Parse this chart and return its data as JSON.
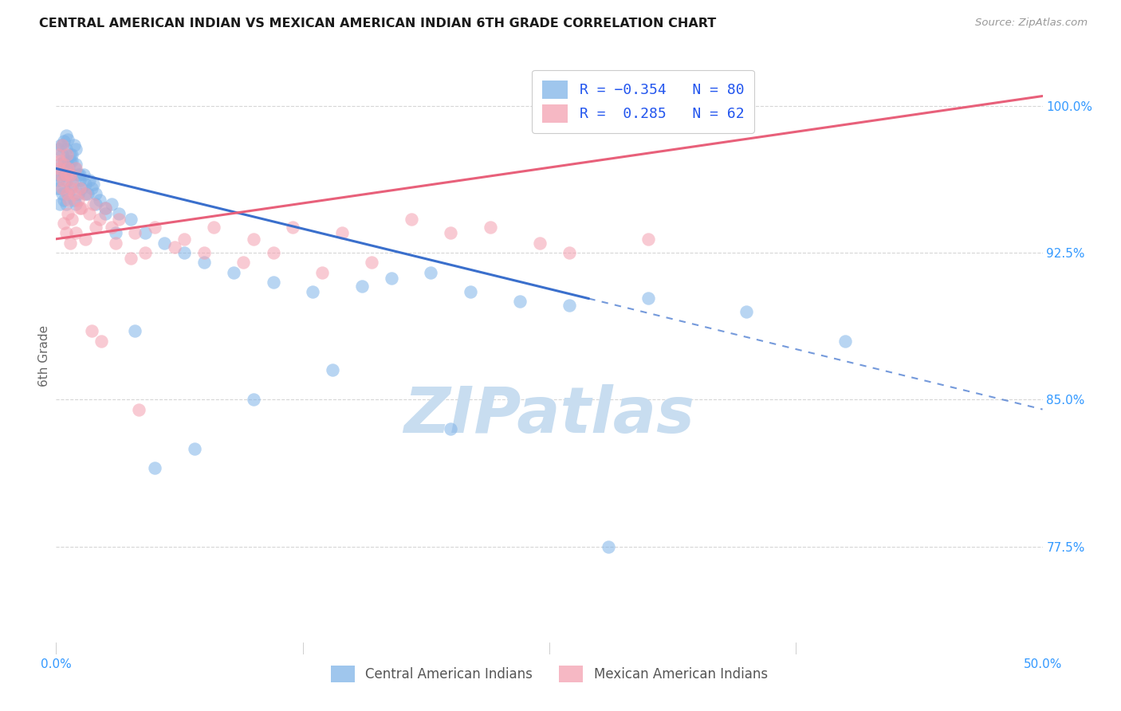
{
  "title": "CENTRAL AMERICAN INDIAN VS MEXICAN AMERICAN INDIAN 6TH GRADE CORRELATION CHART",
  "source": "Source: ZipAtlas.com",
  "ylabel": "6th Grade",
  "xlim": [
    0.0,
    50.0
  ],
  "ylim": [
    72.0,
    102.5
  ],
  "yticks": [
    77.5,
    85.0,
    92.5,
    100.0
  ],
  "xticks": [
    0.0,
    12.5,
    25.0,
    37.5,
    50.0
  ],
  "xtick_labels": [
    "0.0%",
    "",
    "",
    "",
    "50.0%"
  ],
  "ytick_labels": [
    "77.5%",
    "85.0%",
    "92.5%",
    "100.0%"
  ],
  "legend_entries": [
    {
      "label": "R = −0.354   N = 80",
      "color": "#7fb3e8"
    },
    {
      "label": "R =  0.285   N = 62",
      "color": "#f4a0b0"
    }
  ],
  "legend_bottom": [
    "Central American Indians",
    "Mexican American Indians"
  ],
  "blue_color": "#7fb3e8",
  "pink_color": "#f4a0b0",
  "blue_line_color": "#3a6fcc",
  "pink_line_color": "#e8607a",
  "watermark": "ZIPatlas",
  "watermark_color": "#c8ddf0",
  "background_color": "#ffffff",
  "blue_line_x0": 0.0,
  "blue_line_y0": 96.8,
  "blue_line_x1": 50.0,
  "blue_line_y1": 84.5,
  "blue_solid_end": 27.0,
  "pink_line_x0": 0.0,
  "pink_line_y0": 93.2,
  "pink_line_x1": 50.0,
  "pink_line_y1": 100.5,
  "blue_points_x": [
    0.05,
    0.1,
    0.15,
    0.15,
    0.2,
    0.2,
    0.25,
    0.3,
    0.3,
    0.35,
    0.4,
    0.4,
    0.45,
    0.5,
    0.5,
    0.55,
    0.6,
    0.6,
    0.65,
    0.7,
    0.7,
    0.75,
    0.8,
    0.85,
    0.9,
    0.95,
    1.0,
    1.0,
    1.1,
    1.1,
    1.2,
    1.3,
    1.4,
    1.5,
    1.6,
    1.7,
    1.8,
    1.9,
    2.0,
    2.2,
    2.5,
    2.8,
    3.2,
    3.8,
    4.5,
    5.5,
    6.5,
    7.5,
    9.0,
    11.0,
    13.0,
    15.5,
    17.0,
    19.0,
    21.0,
    23.5,
    26.0,
    30.0,
    35.0,
    40.0,
    0.3,
    0.4,
    0.5,
    0.6,
    0.7,
    0.8,
    0.9,
    1.0,
    1.2,
    1.5,
    2.0,
    2.5,
    3.0,
    4.0,
    5.0,
    7.0,
    10.0,
    14.0,
    20.0,
    28.0
  ],
  "blue_points_y": [
    96.5,
    96.2,
    97.8,
    95.8,
    97.0,
    95.0,
    98.0,
    97.5,
    95.5,
    96.8,
    97.2,
    95.2,
    96.5,
    97.8,
    95.0,
    96.2,
    97.0,
    95.5,
    96.8,
    97.2,
    95.8,
    96.5,
    97.5,
    96.0,
    95.2,
    96.8,
    97.0,
    95.0,
    96.5,
    95.5,
    96.2,
    95.8,
    96.5,
    96.0,
    95.5,
    96.2,
    95.8,
    96.0,
    95.5,
    95.2,
    94.8,
    95.0,
    94.5,
    94.2,
    93.5,
    93.0,
    92.5,
    92.0,
    91.5,
    91.0,
    90.5,
    90.8,
    91.2,
    91.5,
    90.5,
    90.0,
    89.8,
    90.2,
    89.5,
    88.0,
    98.0,
    98.2,
    98.5,
    98.3,
    97.5,
    97.2,
    98.0,
    97.8,
    96.5,
    95.5,
    95.0,
    94.5,
    93.5,
    88.5,
    81.5,
    82.5,
    85.0,
    86.5,
    83.5,
    77.5
  ],
  "pink_points_x": [
    0.1,
    0.15,
    0.2,
    0.25,
    0.3,
    0.35,
    0.4,
    0.5,
    0.55,
    0.6,
    0.65,
    0.7,
    0.75,
    0.8,
    0.9,
    1.0,
    1.1,
    1.2,
    1.3,
    1.5,
    1.7,
    1.9,
    2.2,
    2.5,
    2.8,
    3.2,
    4.0,
    5.0,
    6.5,
    8.0,
    10.0,
    12.0,
    14.5,
    18.0,
    22.0,
    0.4,
    0.5,
    0.6,
    0.7,
    0.8,
    1.0,
    1.2,
    1.5,
    2.0,
    3.0,
    4.5,
    6.0,
    7.5,
    3.8,
    9.5,
    11.0,
    13.5,
    16.0,
    20.0,
    24.5,
    0.3,
    0.55,
    1.8,
    2.3,
    4.2,
    26.0,
    30.0
  ],
  "pink_points_y": [
    97.5,
    96.8,
    97.2,
    96.5,
    95.8,
    96.2,
    97.0,
    96.5,
    95.5,
    96.8,
    95.2,
    96.5,
    95.8,
    96.2,
    95.5,
    96.8,
    95.2,
    95.8,
    94.8,
    95.5,
    94.5,
    95.0,
    94.2,
    94.8,
    93.8,
    94.2,
    93.5,
    93.8,
    93.2,
    93.8,
    93.2,
    93.8,
    93.5,
    94.2,
    93.8,
    94.0,
    93.5,
    94.5,
    93.0,
    94.2,
    93.5,
    94.8,
    93.2,
    93.8,
    93.0,
    92.5,
    92.8,
    92.5,
    92.2,
    92.0,
    92.5,
    91.5,
    92.0,
    93.5,
    93.0,
    98.0,
    97.5,
    88.5,
    88.0,
    84.5,
    92.5,
    93.2
  ],
  "big_blue_x": 0.03,
  "big_blue_y": 96.2,
  "big_blue_size": 700
}
